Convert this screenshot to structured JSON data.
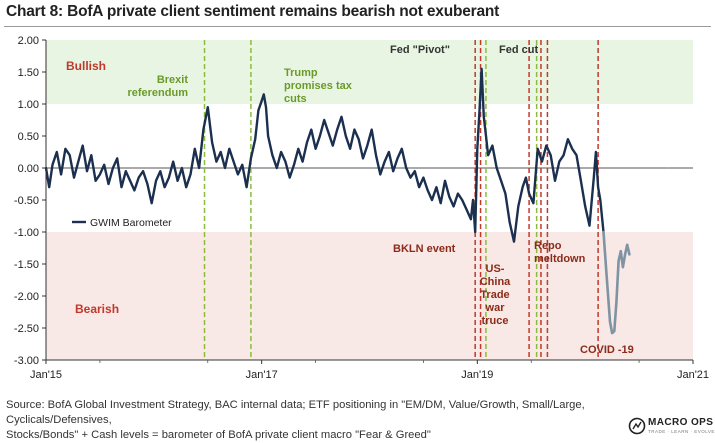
{
  "chart_data": {
    "type": "line",
    "title": "Chart 8: BofA private client sentiment remains bearish not exuberant",
    "xlabel": "",
    "ylabel": "",
    "xlim": [
      2015.0,
      2021.0
    ],
    "ylim": [
      -3.0,
      2.0
    ],
    "x_ticks": [
      2015,
      2017,
      2019,
      2021
    ],
    "x_tick_labels": [
      "Jan'15",
      "Jan'17",
      "Jan'19",
      "Jan'21"
    ],
    "y_ticks": [
      2.0,
      1.5,
      1.0,
      0.5,
      0.0,
      -0.5,
      -1.0,
      -1.5,
      -2.0,
      -2.5,
      -3.0
    ],
    "y_tick_labels": [
      "2.00",
      "1.50",
      "1.00",
      "0.50",
      "0.00",
      "-0.50",
      "-1.00",
      "-1.50",
      "-2.00",
      "-2.50",
      "-3.00"
    ],
    "zones": [
      {
        "label": "Bullish",
        "from": 1.0,
        "to": 2.0,
        "color": "#e9f5e3",
        "label_color": "#c0392b"
      },
      {
        "label": "Bearish",
        "from": -3.0,
        "to": -1.0,
        "color": "#f8e8e6",
        "label_color": "#c0392b"
      }
    ],
    "legend": {
      "position": "left",
      "entry": "GWIM Barometer"
    },
    "series": [
      {
        "name": "GWIM Barometer",
        "color": "#1b2f4e",
        "x": [
          2015.0,
          2015.03,
          2015.06,
          2015.1,
          2015.14,
          2015.18,
          2015.22,
          2015.26,
          2015.3,
          2015.34,
          2015.38,
          2015.42,
          2015.46,
          2015.5,
          2015.54,
          2015.58,
          2015.62,
          2015.66,
          2015.7,
          2015.74,
          2015.78,
          2015.82,
          2015.86,
          2015.9,
          2015.94,
          2015.98,
          2016.02,
          2016.06,
          2016.1,
          2016.14,
          2016.18,
          2016.22,
          2016.26,
          2016.3,
          2016.34,
          2016.38,
          2016.42,
          2016.46,
          2016.5,
          2016.54,
          2016.58,
          2016.62,
          2016.66,
          2016.7,
          2016.74,
          2016.78,
          2016.82,
          2016.86,
          2016.9,
          2016.94,
          2016.97,
          2017.0,
          2017.02,
          2017.04,
          2017.06,
          2017.1,
          2017.14,
          2017.18,
          2017.22,
          2017.26,
          2017.3,
          2017.34,
          2017.38,
          2017.42,
          2017.46,
          2017.5,
          2017.54,
          2017.58,
          2017.62,
          2017.66,
          2017.7,
          2017.74,
          2017.78,
          2017.82,
          2017.86,
          2017.9,
          2017.94,
          2017.98,
          2018.02,
          2018.06,
          2018.1,
          2018.14,
          2018.18,
          2018.22,
          2018.26,
          2018.3,
          2018.34,
          2018.38,
          2018.42,
          2018.46,
          2018.5,
          2018.54,
          2018.58,
          2018.62,
          2018.66,
          2018.7,
          2018.74,
          2018.78,
          2018.82,
          2018.86,
          2018.9,
          2018.94,
          2018.96,
          2018.98,
          2019.0,
          2019.02,
          2019.04,
          2019.06,
          2019.08,
          2019.1,
          2019.14,
          2019.18,
          2019.22,
          2019.26,
          2019.3,
          2019.34,
          2019.38,
          2019.42,
          2019.45,
          2019.48,
          2019.52,
          2019.56,
          2019.6,
          2019.64,
          2019.68,
          2019.72,
          2019.76,
          2019.8,
          2019.84,
          2019.88,
          2019.92,
          2019.96,
          2020.0,
          2020.04,
          2020.08,
          2020.1,
          2020.12,
          2020.14,
          2020.17
        ],
        "values": [
          0.0,
          -0.3,
          0.05,
          0.25,
          -0.1,
          0.3,
          0.2,
          -0.15,
          0.1,
          0.35,
          -0.05,
          0.2,
          -0.2,
          -0.1,
          0.05,
          -0.25,
          0.0,
          0.15,
          -0.3,
          -0.05,
          -0.2,
          -0.35,
          -0.15,
          -0.05,
          -0.25,
          -0.55,
          -0.2,
          -0.05,
          -0.3,
          -0.15,
          0.1,
          -0.2,
          0.0,
          -0.3,
          -0.1,
          0.3,
          0.0,
          0.6,
          0.95,
          0.4,
          0.1,
          0.25,
          0.0,
          0.3,
          0.1,
          -0.1,
          0.05,
          -0.3,
          0.15,
          0.45,
          0.9,
          1.05,
          1.15,
          0.95,
          0.5,
          0.2,
          0.0,
          0.25,
          0.1,
          -0.15,
          0.05,
          0.3,
          0.1,
          0.4,
          0.6,
          0.3,
          0.5,
          0.75,
          0.55,
          0.35,
          0.6,
          0.8,
          0.5,
          0.3,
          0.6,
          0.45,
          0.15,
          0.35,
          0.6,
          0.2,
          -0.1,
          0.1,
          0.25,
          -0.05,
          0.15,
          0.3,
          0.0,
          -0.15,
          -0.05,
          -0.3,
          -0.15,
          -0.35,
          -0.5,
          -0.3,
          -0.55,
          -0.2,
          -0.45,
          -0.6,
          -0.4,
          -0.5,
          -0.65,
          -0.8,
          -0.5,
          -1.0,
          0.3,
          0.9,
          1.55,
          0.8,
          0.5,
          0.2,
          0.35,
          0.0,
          -0.2,
          -0.4,
          -0.85,
          -1.15,
          -0.6,
          -0.3,
          -0.15,
          -0.4,
          -0.55,
          0.3,
          0.1,
          0.35,
          0.2,
          -0.2,
          0.1,
          0.2,
          0.45,
          0.3,
          0.2,
          -0.2,
          -0.6,
          -0.9,
          -0.15,
          0.25,
          -0.3,
          -0.5,
          -1.0
        ],
        "style": "solid"
      },
      {
        "name": "GWIM Barometer (latest)",
        "color": "#7f93a3",
        "x": [
          2020.17,
          2020.2,
          2020.23,
          2020.25,
          2020.27,
          2020.29,
          2020.31,
          2020.33,
          2020.35,
          2020.37,
          2020.39,
          2020.41
        ],
        "values": [
          -1.0,
          -1.7,
          -2.4,
          -2.58,
          -2.55,
          -2.1,
          -1.45,
          -1.3,
          -1.55,
          -1.35,
          -1.2,
          -1.35
        ],
        "style": "solid"
      }
    ],
    "event_lines": [
      {
        "x": 2016.47,
        "color": "#8dbb3f"
      },
      {
        "x": 2016.9,
        "color": "#8dbb3f"
      },
      {
        "x": 2018.98,
        "color": "#c0392b"
      },
      {
        "x": 2019.03,
        "color": "#c0392b"
      },
      {
        "x": 2019.08,
        "color": "#8dbb3f"
      },
      {
        "x": 2019.48,
        "color": "#c0392b"
      },
      {
        "x": 2019.55,
        "color": "#8dbb3f"
      },
      {
        "x": 2019.59,
        "color": "#c0392b"
      },
      {
        "x": 2019.65,
        "color": "#c0392b"
      },
      {
        "x": 2020.12,
        "color": "#c0392b"
      }
    ],
    "annotations": [
      {
        "lines": [
          "Brexit",
          "referendum"
        ],
        "color": "#6a9a2a"
      },
      {
        "lines": [
          "Trump",
          "promises tax",
          "cuts"
        ],
        "color": "#6a9a2a"
      },
      {
        "lines": [
          "Fed \"Pivot\""
        ],
        "color": "#333333"
      },
      {
        "lines": [
          "Fed cut"
        ],
        "color": "#333333"
      },
      {
        "lines": [
          "BKLN event"
        ],
        "color": "#8b2b1a"
      },
      {
        "lines": [
          "US-",
          "China",
          "Trade",
          "war",
          "truce"
        ],
        "color": "#8b2b1a"
      },
      {
        "lines": [
          "Repo",
          "meltdown"
        ],
        "color": "#8b2b1a"
      },
      {
        "lines": [
          "COVID -19"
        ],
        "color": "#8b2b1a"
      }
    ]
  },
  "footer": {
    "source_line1": "Source: BofA Global Investment Strategy, BAC internal data; ETF positioning in \"EM/DM, Value/Growth, Small/Large, Cyclicals/Defensives,",
    "source_line2": "Stocks/Bonds\" + Cash levels = barometer of BofA private client macro \"Fear & Greed\""
  },
  "logo": {
    "name": "MACRO OPS",
    "tagline": "TRADE · LEARN · EVOLVE"
  }
}
